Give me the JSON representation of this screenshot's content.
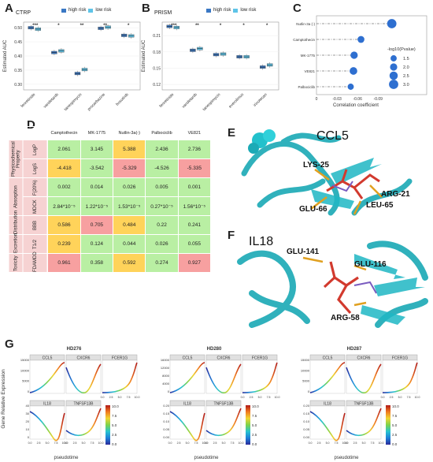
{
  "panels": {
    "A": {
      "letter": "A",
      "title": "CTRP",
      "ylabel": "Estimated AUC",
      "legend": [
        "high risk",
        "low risk"
      ],
      "colors": {
        "high": "#3a78c4",
        "low": "#5ec4e8"
      },
      "drugs": [
        "fenretinide",
        "vandetanib",
        "tanespimycin",
        "procarbazine",
        "bosutinib"
      ],
      "sig": [
        "***",
        "*",
        "**",
        "**",
        "*"
      ],
      "yticks": [
        "0.30",
        "0.35",
        "0.40",
        "0.45",
        "0.50"
      ],
      "chart_data": {
        "type": "box",
        "categories": [
          "fenretinide",
          "vandetanib",
          "tanespimycin",
          "procarbazine",
          "bosutinib"
        ],
        "series": [
          {
            "name": "high risk",
            "median": [
              0.5,
              0.412,
              0.338,
              0.498,
              0.473
            ]
          },
          {
            "name": "low risk",
            "median": [
              0.495,
              0.418,
              0.352,
              0.502,
              0.471
            ]
          }
        ],
        "ylim": [
          0.28,
          0.52
        ]
      }
    },
    "B": {
      "letter": "B",
      "title": "PRISM",
      "ylabel": "Estimated AUC",
      "legend": [
        "high risk",
        "low risk"
      ],
      "drugs": [
        "fenretinide",
        "vandetanib",
        "tanespimycin",
        "everolimus",
        "irinotecan"
      ],
      "sig": [
        "***",
        "**",
        "*",
        "*",
        "*"
      ],
      "yticks": [
        "0.12",
        "0.15",
        "0.18",
        "0.21"
      ],
      "chart_data": {
        "type": "box",
        "categories": [
          "fenretinide",
          "vandetanib",
          "tanespimycin",
          "everolimus",
          "irinotecan"
        ],
        "series": [
          {
            "name": "high risk",
            "median": [
              0.227,
              0.183,
              0.175,
              0.171,
              0.152
            ]
          },
          {
            "name": "low risk",
            "median": [
              0.225,
              0.186,
              0.176,
              0.171,
              0.156
            ]
          }
        ],
        "ylim": [
          0.11,
          0.235
        ]
      }
    },
    "C": {
      "letter": "C",
      "xlabel": "Correlation coefficient",
      "legend_title": "-log10(Pvalue)",
      "legend_vals": [
        "1.5",
        "2.0",
        "2.5",
        "3.0"
      ],
      "xticks": [
        "0",
        "-0.03",
        "-0.06",
        "-0.09"
      ],
      "chart_data": {
        "type": "lollipop",
        "categories": [
          "Nutlin-3a (-)",
          "Camptothecin",
          "MK-1775",
          "VE821",
          "Palbociclib"
        ],
        "values": [
          -0.11,
          -0.065,
          -0.055,
          -0.054,
          -0.05
        ],
        "sizes": [
          3.0,
          1.8,
          2.0,
          2.2,
          1.5
        ],
        "xlim": [
          0,
          -0.115
        ]
      }
    },
    "D": {
      "letter": "D",
      "drugs": [
        "Camptothecin",
        "MK-1775",
        "Nutlin-3a(-)",
        "Palbociclib",
        "VE821"
      ],
      "groups": [
        {
          "label": "Physicochemical Property",
          "rows": 2
        },
        {
          "label": "Absorption",
          "rows": 2
        },
        {
          "label": "Distribution",
          "rows": 1
        },
        {
          "label": "Excretion",
          "rows": 1
        },
        {
          "label": "Toxicity",
          "rows": 1
        }
      ],
      "rows": [
        {
          "name": "LogP",
          "values": [
            "2.061",
            "3.145",
            "5.388",
            "2.436",
            "2.736"
          ],
          "colors": [
            "g",
            "g",
            "y",
            "g",
            "g"
          ]
        },
        {
          "name": "LogS",
          "values": [
            "-4.418",
            "-3.542",
            "-5.329",
            "-4.526",
            "-5.335"
          ],
          "colors": [
            "y",
            "g",
            "r",
            "g",
            "r"
          ]
        },
        {
          "name": "F(20%)",
          "values": [
            "0.002",
            "0.014",
            "0.026",
            "0.005",
            "0.001"
          ],
          "colors": [
            "g",
            "g",
            "g",
            "g",
            "g"
          ]
        },
        {
          "name": "MDCK",
          "values": [
            "2.84*10⁻⁵",
            "1.22*10⁻⁵",
            "1.53*10⁻⁵",
            "0.27*10⁻⁵",
            "1.56*10⁻⁵"
          ],
          "colors": [
            "g",
            "g",
            "g",
            "g",
            "g"
          ]
        },
        {
          "name": "BBB",
          "values": [
            "0.586",
            "0.705",
            "0.484",
            "0.22",
            "0.241"
          ],
          "colors": [
            "y",
            "r",
            "y",
            "g",
            "g"
          ]
        },
        {
          "name": "T1/2",
          "values": [
            "0.239",
            "0.124",
            "0.044",
            "0.026",
            "0.055"
          ],
          "colors": [
            "y",
            "g",
            "g",
            "g",
            "g"
          ]
        },
        {
          "name": "FDAMDD",
          "values": [
            "0.961",
            "0.358",
            "0.592",
            "0.274",
            "0.927"
          ],
          "colors": [
            "r",
            "g",
            "y",
            "g",
            "r"
          ]
        }
      ],
      "palette": {
        "g": "#b9efa3",
        "y": "#ffd35a",
        "r": "#f7a0a0"
      }
    },
    "E": {
      "letter": "E",
      "title": "CCL5",
      "residues": [
        "LYS-25",
        "ARG-21",
        "LEU-65",
        "GLU-66"
      ]
    },
    "F": {
      "letter": "F",
      "title": "IL18",
      "residues": [
        "GLU-141",
        "GLU-116",
        "ARG-58"
      ]
    },
    "G": {
      "letter": "G",
      "ylabel": "Gene Relative Expression",
      "xlabel": "pseudotime",
      "colorbar_ticks": [
        "10.0",
        "7.5",
        "5.0",
        "2.5",
        "0.0"
      ],
      "samples": [
        {
          "title": "HD276",
          "genes": [
            "CCL5",
            "CXCR6",
            "FCER1G",
            "IL18",
            "TNFSF13B"
          ],
          "yticks_top": [
            "0",
            "5000",
            "10000",
            "15000"
          ],
          "yticks_bot": [
            "0",
            "10",
            "20",
            "30",
            "40"
          ]
        },
        {
          "title": "HD280",
          "genes": [
            "CCL5",
            "CXCR6",
            "FCER1G",
            "IL18",
            "TNFSF13B"
          ],
          "yticks_top": [
            "0",
            "4000",
            "8000",
            "12000",
            "16000"
          ],
          "yticks_bot": [
            "0.00",
            "0.05",
            "0.10",
            "0.15",
            "0.20"
          ]
        },
        {
          "title": "HD287",
          "genes": [
            "CCL5",
            "CXCR6",
            "FCER1G",
            "IL18",
            "TNFSF13B"
          ],
          "yticks_top": [
            "0",
            "5000",
            "10000",
            "15000"
          ],
          "yticks_bot": [
            "0.00",
            "0.05",
            "0.10",
            "0.15",
            "0.20"
          ]
        }
      ],
      "xticks": [
        "0.0",
        "2.5",
        "5.0",
        "7.5",
        "10.0"
      ]
    }
  }
}
